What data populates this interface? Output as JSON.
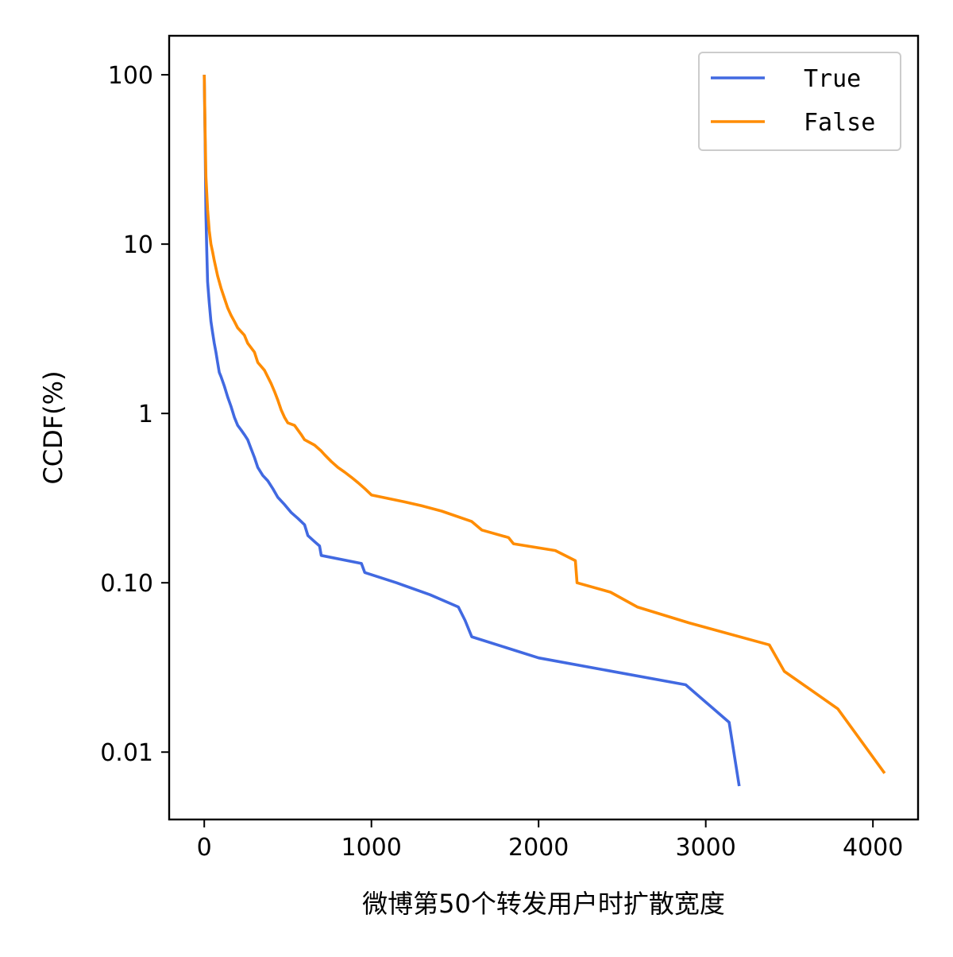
{
  "chart_data": {
    "type": "line",
    "title": "",
    "xlabel": "微博第50个转发用户时扩散宽度",
    "ylabel": "CCDF(%)",
    "xlim": [
      -210,
      4270
    ],
    "ylim": [
      0.004,
      170
    ],
    "yscale": "log",
    "x_ticks": [
      0,
      1000,
      2000,
      3000,
      4000
    ],
    "x_tick_labels": [
      "0",
      "1000",
      "2000",
      "3000",
      "4000"
    ],
    "y_ticks": [
      0.01,
      0.1,
      1,
      10,
      100
    ],
    "y_tick_labels": [
      "0.01",
      "0.10",
      "1",
      "10",
      "100"
    ],
    "grid": false,
    "legend_position": "top-right",
    "series": [
      {
        "name": "True",
        "color": "#4169E1",
        "points": [
          [
            0,
            100
          ],
          [
            5,
            40
          ],
          [
            10,
            15
          ],
          [
            15,
            9
          ],
          [
            20,
            6
          ],
          [
            30,
            4.5
          ],
          [
            40,
            3.5
          ],
          [
            50,
            3
          ],
          [
            60,
            2.6
          ],
          [
            70,
            2.3
          ],
          [
            80,
            2
          ],
          [
            90,
            1.75
          ],
          [
            100,
            1.65
          ],
          [
            120,
            1.45
          ],
          [
            140,
            1.25
          ],
          [
            160,
            1.1
          ],
          [
            180,
            0.95
          ],
          [
            200,
            0.85
          ],
          [
            220,
            0.8
          ],
          [
            240,
            0.75
          ],
          [
            260,
            0.7
          ],
          [
            280,
            0.62
          ],
          [
            300,
            0.55
          ],
          [
            320,
            0.48
          ],
          [
            350,
            0.43
          ],
          [
            380,
            0.4
          ],
          [
            410,
            0.36
          ],
          [
            440,
            0.32
          ],
          [
            480,
            0.29
          ],
          [
            520,
            0.26
          ],
          [
            560,
            0.24
          ],
          [
            600,
            0.22
          ],
          [
            620,
            0.19
          ],
          [
            660,
            0.175
          ],
          [
            690,
            0.165
          ],
          [
            700,
            0.145
          ],
          [
            940,
            0.13
          ],
          [
            960,
            0.115
          ],
          [
            1150,
            0.1
          ],
          [
            1350,
            0.085
          ],
          [
            1520,
            0.072
          ],
          [
            1560,
            0.06
          ],
          [
            1600,
            0.048
          ],
          [
            2000,
            0.036
          ],
          [
            2880,
            0.025
          ],
          [
            3140,
            0.015
          ],
          [
            3200,
            0.0063
          ]
        ]
      },
      {
        "name": "False",
        "color": "#FF8C00",
        "points": [
          [
            0,
            100
          ],
          [
            5,
            45
          ],
          [
            10,
            25
          ],
          [
            20,
            16
          ],
          [
            30,
            12
          ],
          [
            40,
            10
          ],
          [
            50,
            9
          ],
          [
            60,
            8
          ],
          [
            80,
            6.5
          ],
          [
            100,
            5.5
          ],
          [
            120,
            4.8
          ],
          [
            140,
            4.2
          ],
          [
            160,
            3.8
          ],
          [
            180,
            3.5
          ],
          [
            200,
            3.2
          ],
          [
            240,
            2.9
          ],
          [
            260,
            2.6
          ],
          [
            300,
            2.3
          ],
          [
            320,
            2
          ],
          [
            360,
            1.8
          ],
          [
            400,
            1.5
          ],
          [
            420,
            1.35
          ],
          [
            440,
            1.2
          ],
          [
            460,
            1.05
          ],
          [
            480,
            0.95
          ],
          [
            500,
            0.88
          ],
          [
            540,
            0.85
          ],
          [
            580,
            0.75
          ],
          [
            600,
            0.7
          ],
          [
            660,
            0.65
          ],
          [
            700,
            0.6
          ],
          [
            720,
            0.57
          ],
          [
            760,
            0.52
          ],
          [
            800,
            0.48
          ],
          [
            840,
            0.45
          ],
          [
            880,
            0.42
          ],
          [
            920,
            0.39
          ],
          [
            960,
            0.36
          ],
          [
            1000,
            0.33
          ],
          [
            1200,
            0.3
          ],
          [
            1300,
            0.285
          ],
          [
            1420,
            0.265
          ],
          [
            1600,
            0.23
          ],
          [
            1660,
            0.205
          ],
          [
            1820,
            0.185
          ],
          [
            1850,
            0.17
          ],
          [
            2100,
            0.155
          ],
          [
            2220,
            0.135
          ],
          [
            2230,
            0.1
          ],
          [
            2430,
            0.088
          ],
          [
            2590,
            0.072
          ],
          [
            2900,
            0.058
          ],
          [
            3380,
            0.043
          ],
          [
            3470,
            0.03
          ],
          [
            3790,
            0.018
          ],
          [
            4070,
            0.0075
          ]
        ]
      }
    ]
  }
}
